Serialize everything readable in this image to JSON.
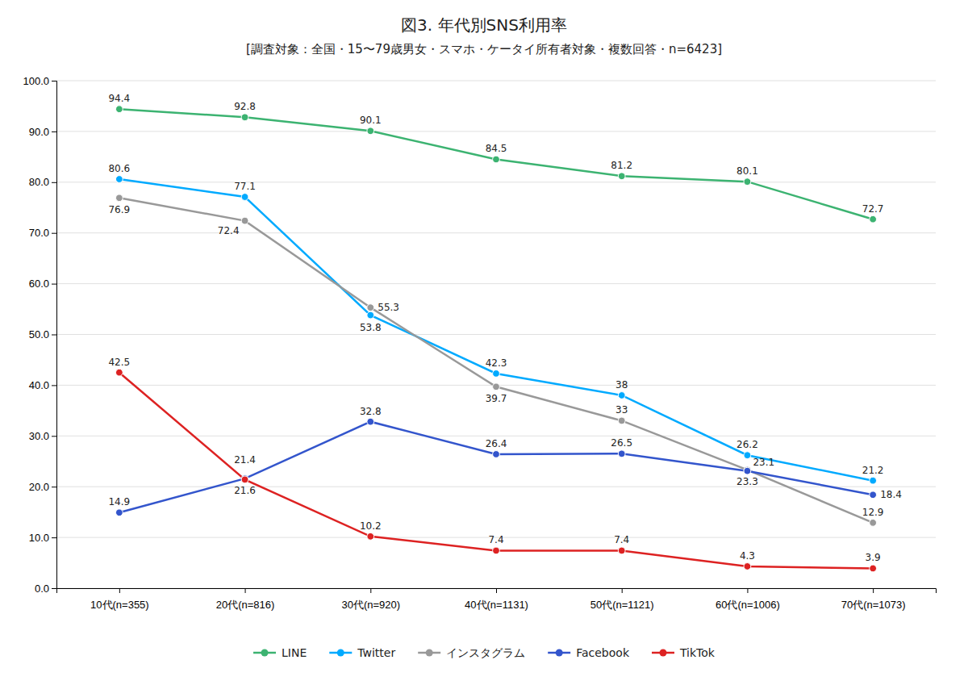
{
  "chart_data": {
    "type": "line",
    "title": "図3. 年代別SNS利用率",
    "subtitle": "[調査対象：全国・15〜79歳男女・スマホ・ケータイ所有者対象・複数回答・n=6423]",
    "categories": [
      "10代(n=355)",
      "20代(n=816)",
      "30代(n=920)",
      "40代(n=1131)",
      "50代(n=1121)",
      "60代(n=1006)",
      "70代(n=1073)"
    ],
    "series": [
      {
        "name": "LINE",
        "color": "#3cb371",
        "values": [
          94.4,
          92.8,
          90.1,
          84.5,
          81.2,
          80.1,
          72.7
        ]
      },
      {
        "name": "Twitter",
        "color": "#00aaff",
        "values": [
          80.6,
          77.1,
          53.8,
          42.3,
          38.0,
          26.2,
          21.2
        ]
      },
      {
        "name": "インスタグラム",
        "color": "#999999",
        "values": [
          76.9,
          72.4,
          55.3,
          39.7,
          33.0,
          23.3,
          12.9
        ]
      },
      {
        "name": "Facebook",
        "color": "#3355cc",
        "values": [
          14.9,
          21.6,
          32.8,
          26.4,
          26.5,
          23.1,
          18.4
        ]
      },
      {
        "name": "TikTok",
        "color": "#dd2222",
        "values": [
          42.5,
          21.4,
          10.2,
          7.4,
          7.4,
          4.3,
          3.9
        ]
      }
    ],
    "ylim": [
      0.0,
      100.0
    ],
    "yticks": [
      {
        "value": 0.0,
        "label": "0.0"
      },
      {
        "value": 10.0,
        "label": "10.0"
      },
      {
        "value": 20.0,
        "label": "20.0"
      },
      {
        "value": 30.0,
        "label": "30.0"
      },
      {
        "value": 40.0,
        "label": "40.0"
      },
      {
        "value": 50.0,
        "label": "50.0"
      },
      {
        "value": 60.0,
        "label": "60.0"
      },
      {
        "value": 70.0,
        "label": "70.0"
      },
      {
        "value": 80.0,
        "label": "80.0"
      },
      {
        "value": 90.0,
        "label": "90.0"
      },
      {
        "value": 100.0,
        "label": "100.0"
      }
    ],
    "grid": true,
    "legend": "bottom",
    "data_labels": true,
    "marker": "circle",
    "line_style": "solid"
  }
}
